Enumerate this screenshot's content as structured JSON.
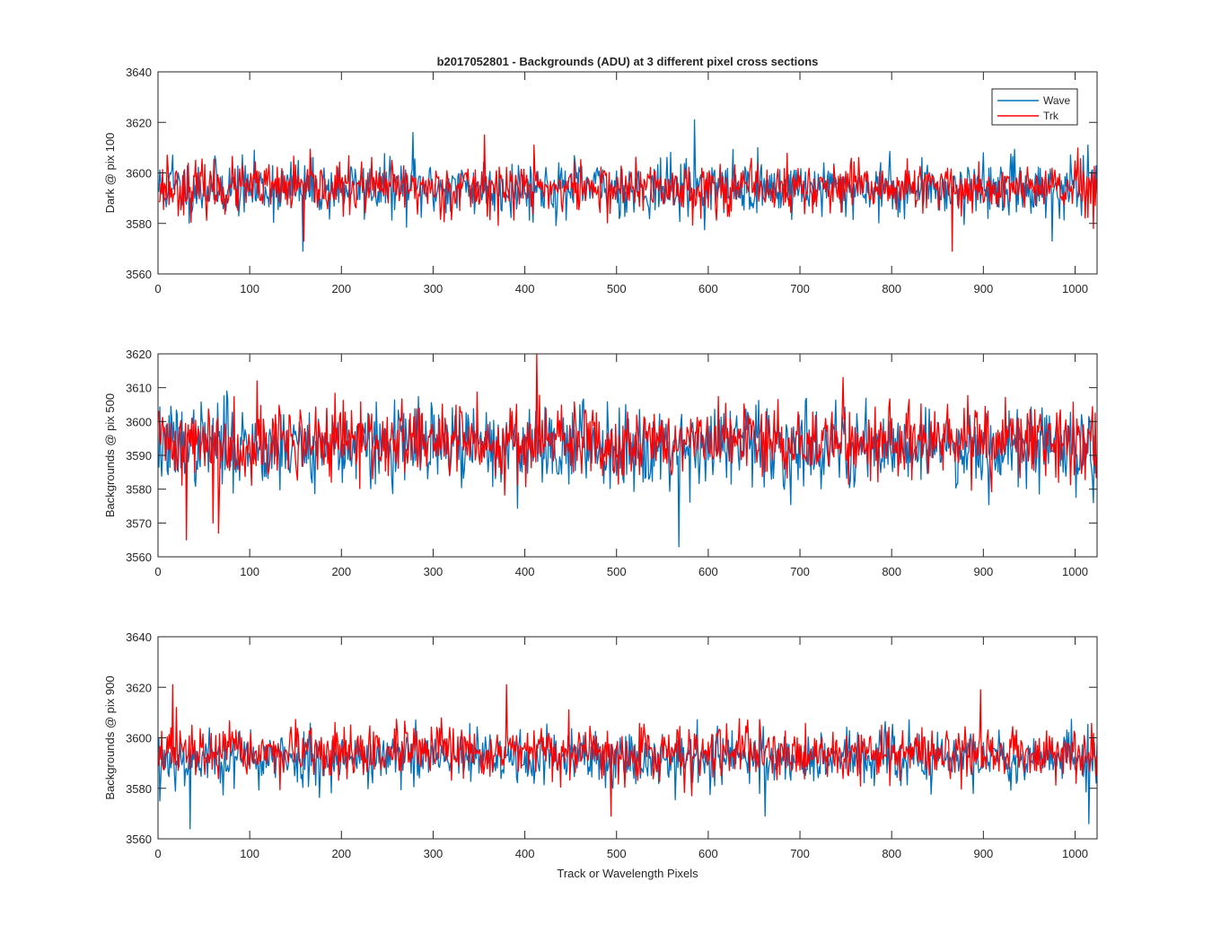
{
  "figure": {
    "title": "b2017052801 - Backgrounds (ADU) at 3 different pixel cross sections",
    "xlabel": "Track or Wavelength Pixels"
  },
  "legend": {
    "placement": "top-right",
    "entries": [
      {
        "name": "Wave",
        "color": "#0072BD"
      },
      {
        "name": "Trk",
        "color": "#FF0000"
      }
    ]
  },
  "chart_data": [
    {
      "type": "line",
      "ylabel": "Dark @ pix 100",
      "xlim": [
        0,
        1024
      ],
      "ylim": [
        3560,
        3640
      ],
      "xticks": [
        0,
        100,
        200,
        300,
        400,
        500,
        600,
        700,
        800,
        900,
        1000
      ],
      "yticks": [
        3560,
        3580,
        3600,
        3620,
        3640
      ],
      "grid": false,
      "has_legend": true,
      "series": [
        {
          "name": "Wave",
          "color": "#0072BD",
          "mean": 3594,
          "spread": 5.5,
          "seed": 11,
          "spikes": [
            [
              16,
              3607
            ],
            [
              158,
              3569
            ],
            [
              278,
              3616
            ],
            [
              585,
              3621
            ],
            [
              900,
              3608
            ],
            [
              975,
              3573
            ],
            [
              1020,
              3590
            ]
          ]
        },
        {
          "name": "Trk",
          "color": "#FF0000",
          "mean": 3594,
          "spread": 5.0,
          "seed": 23,
          "spikes": [
            [
              10,
              3607
            ],
            [
              159,
              3573
            ],
            [
              356,
              3615
            ],
            [
              410,
              3611
            ],
            [
              866,
              3569
            ],
            [
              1020,
              3578
            ]
          ]
        }
      ]
    },
    {
      "type": "line",
      "ylabel": "Backgrounds @ pix 500",
      "xlim": [
        0,
        1024
      ],
      "ylim": [
        3560,
        3620
      ],
      "xticks": [
        0,
        100,
        200,
        300,
        400,
        500,
        600,
        700,
        800,
        900,
        1000
      ],
      "yticks": [
        3560,
        3570,
        3580,
        3590,
        3600,
        3610,
        3620
      ],
      "grid": false,
      "has_legend": false,
      "series": [
        {
          "name": "Wave",
          "color": "#0072BD",
          "mean": 3593,
          "spread": 6.0,
          "seed": 37,
          "spikes": [
            [
              75,
              3609
            ],
            [
              568,
              3563
            ],
            [
              1020,
              3576
            ]
          ]
        },
        {
          "name": "Trk",
          "color": "#FF0000",
          "mean": 3594,
          "spread": 5.5,
          "seed": 41,
          "spikes": [
            [
              31,
              3565
            ],
            [
              60,
              3570
            ],
            [
              66,
              3567
            ],
            [
              108,
              3612
            ],
            [
              413,
              3620
            ],
            [
              747,
              3613
            ]
          ]
        }
      ]
    },
    {
      "type": "line",
      "ylabel": "Backgrounds @ pix 900",
      "xlim": [
        0,
        1024
      ],
      "ylim": [
        3560,
        3640
      ],
      "xticks": [
        0,
        100,
        200,
        300,
        400,
        500,
        600,
        700,
        800,
        900,
        1000
      ],
      "yticks": [
        3560,
        3580,
        3600,
        3620,
        3640
      ],
      "grid": false,
      "has_legend": false,
      "series": [
        {
          "name": "Wave",
          "color": "#0072BD",
          "mean": 3592,
          "spread": 5.5,
          "seed": 53,
          "spikes": [
            [
              2,
              3575
            ],
            [
              35,
              3564
            ],
            [
              662,
              3569
            ],
            [
              1015,
              3566
            ]
          ]
        },
        {
          "name": "Trk",
          "color": "#FF0000",
          "mean": 3594,
          "spread": 5.0,
          "seed": 67,
          "spikes": [
            [
              16,
              3621
            ],
            [
              20,
              3612
            ],
            [
              380,
              3621
            ],
            [
              494,
              3569
            ],
            [
              897,
              3619
            ]
          ]
        }
      ]
    }
  ]
}
